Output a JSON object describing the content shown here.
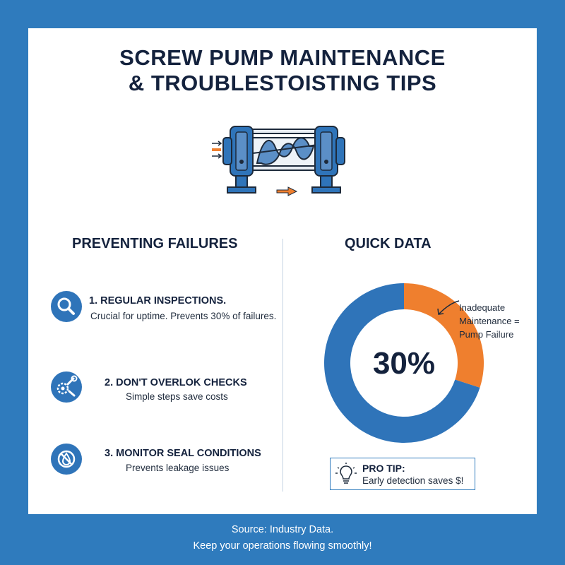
{
  "title_lines": [
    "SCREW PUMP MAINTENANCE",
    "& TROUBLESTOISTING TIPS"
  ],
  "illustration": "screw-pump",
  "left_section": {
    "heading": "PREVENTING FAILURES",
    "tips": [
      {
        "icon": "magnifier-icon",
        "title": "1. REGULAR INSPECTIONS.",
        "text": "Crucial for uptime. Prevents 30% of failures."
      },
      {
        "icon": "wrench-gear-icon",
        "title": "2. DON'T OVERLOK CHECKS",
        "text": "Simple steps save costs"
      },
      {
        "icon": "no-leak-icon",
        "title": "3. MONITOR SEAL CONDITIONS",
        "text": "Prevents leakage issues"
      }
    ]
  },
  "right_section": {
    "heading": "QUICK DATA",
    "pro_tip": {
      "label": "PRO TIP:",
      "text": "Early detection saves $!",
      "icon": "lightbulb-icon"
    }
  },
  "chart_data": {
    "type": "pie",
    "center_label": "30%",
    "slices": [
      {
        "value": 30,
        "label": "Inadequate Maintenance = Pump Failure",
        "color": "#ef7f2e"
      },
      {
        "value": 70,
        "label": "",
        "color": "#2f74b9"
      }
    ],
    "annotation": [
      "Inadequate",
      "Maintenance =",
      "Pump Failure"
    ]
  },
  "footer": {
    "line1": "Source: Industry Data.",
    "line2": "Keep your operations flowing smoothly!"
  },
  "colors": {
    "background": "#2f7bbd",
    "accent_orange": "#ef7f2e",
    "accent_blue": "#2f74b9",
    "text_dark": "#14223d"
  }
}
